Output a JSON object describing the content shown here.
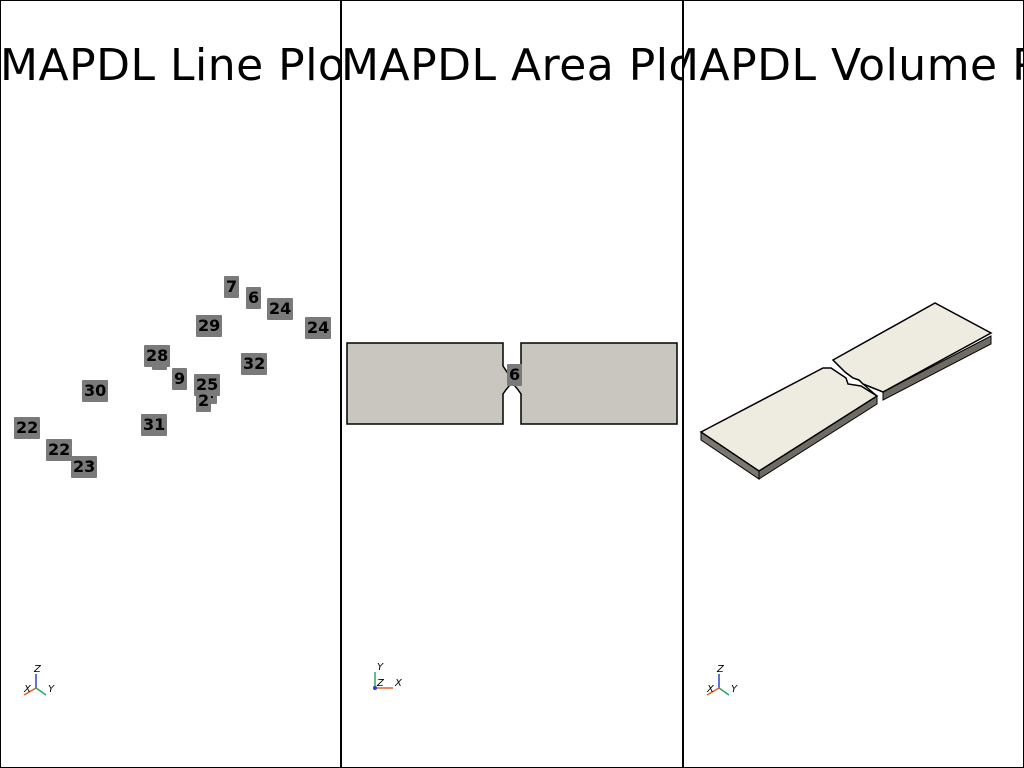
{
  "panels": [
    {
      "id": "line",
      "title": "MAPDL Line Plot",
      "labels": [
        "7",
        "6",
        "24",
        "24",
        "29",
        "28",
        "3",
        "9",
        "32",
        "30",
        "25",
        "4",
        "2",
        "22",
        "31",
        "22",
        "23"
      ],
      "axes": {
        "up": "Z",
        "left": "X",
        "right": "Y"
      }
    },
    {
      "id": "area",
      "title": "MAPDL Area Plot",
      "labels": [
        "6"
      ],
      "axes": {
        "up": "Y",
        "left": "Z",
        "right": "X"
      },
      "fill_color": "#c8c6be"
    },
    {
      "id": "volume",
      "title": "MAPDL Volume Plot",
      "axes": {
        "up": "Z",
        "left": "X",
        "right": "Y"
      },
      "fill_color": "#eeebe0"
    }
  ],
  "colors": {
    "background": "#ffffff",
    "label_bg": "#7a7a7a",
    "axis_x": "#e0602a",
    "axis_y": "#2aa860",
    "axis_z": "#2a40d0"
  }
}
